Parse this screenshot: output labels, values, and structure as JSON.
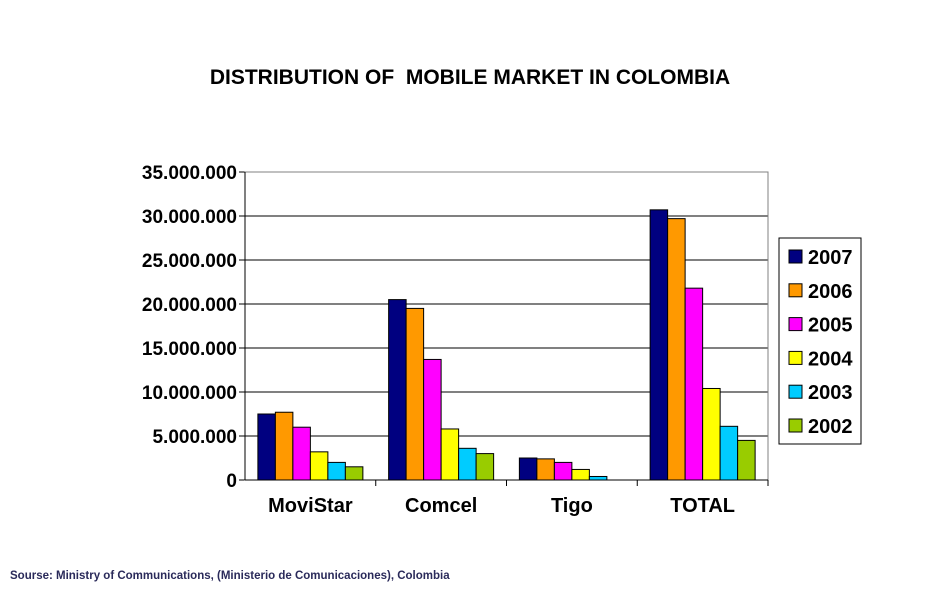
{
  "chart_data": {
    "type": "bar",
    "title": "DISTRIBUTION OF  MOBILE MARKET IN COLOMBIA",
    "categories": [
      "MoviStar",
      "Comcel",
      "Tigo",
      "TOTAL"
    ],
    "series": [
      {
        "name": "2007",
        "color": "#000080",
        "values": [
          7500000,
          20500000,
          2500000,
          30700000
        ]
      },
      {
        "name": "2006",
        "color": "#FF9900",
        "values": [
          7700000,
          19500000,
          2400000,
          29700000
        ]
      },
      {
        "name": "2005",
        "color": "#FF00FF",
        "values": [
          6000000,
          13700000,
          2000000,
          21800000
        ]
      },
      {
        "name": "2004",
        "color": "#FFFF00",
        "values": [
          3200000,
          5800000,
          1200000,
          10400000
        ]
      },
      {
        "name": "2003",
        "color": "#00CCFF",
        "values": [
          2000000,
          3600000,
          400000,
          6100000
        ]
      },
      {
        "name": "2002",
        "color": "#99CC00",
        "values": [
          1500000,
          3000000,
          0,
          4500000
        ]
      }
    ],
    "ylim": [
      0,
      35000000
    ],
    "yticks": [
      0,
      5000000,
      10000000,
      15000000,
      20000000,
      25000000,
      30000000,
      35000000
    ],
    "ytick_labels": [
      "0",
      "5.000.000",
      "10.000.000",
      "15.000.000",
      "20.000.000",
      "25.000.000",
      "30.000.000",
      "35.000.000"
    ],
    "grid": true,
    "legend_position": "right"
  },
  "source_note": "Sourse: Ministry of Communications, (Ministerio de Comunicaciones), Colombia"
}
